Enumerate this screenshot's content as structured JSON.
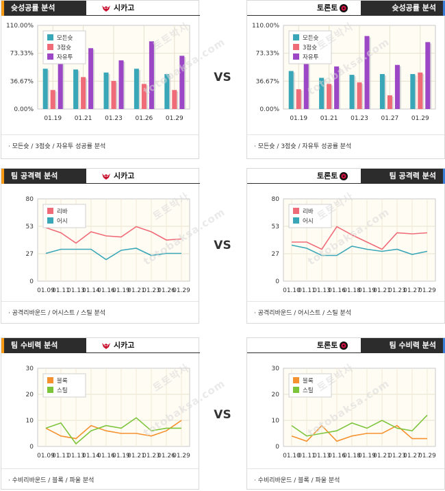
{
  "vs_label": "VS",
  "watermark": [
    "토토박사",
    "totobaksa.com"
  ],
  "teams": {
    "left": "시카고",
    "right": "토론토"
  },
  "colors": {
    "accent_left": "#f59a12",
    "accent_right": "#3a7fd9",
    "header_bg": "#2c2c2c",
    "plot_bg": "#fffcf3"
  },
  "sections": [
    {
      "title": "슛성공률 분석",
      "footer": "모든슛 / 3점슛 / 자유투 성공률 분석",
      "charts": [
        {
          "type": "bar",
          "categories": [
            "01.19",
            "01.21",
            "01.23",
            "01.26",
            "01.29"
          ],
          "yticks": [
            "110.00%",
            "73.33%",
            "36.67%",
            "0.00%"
          ],
          "ylim": [
            0,
            110
          ],
          "legend_position": "top-left",
          "series": [
            {
              "name": "모든슛",
              "color": "#3aa7b8",
              "values": [
                53,
                52,
                48,
                53,
                46
              ]
            },
            {
              "name": "3점슛",
              "color": "#f06b78",
              "values": [
                25,
                42,
                37,
                33,
                25
              ]
            },
            {
              "name": "자유투",
              "color": "#9b47c6",
              "values": [
                85,
                80,
                64,
                89,
                70
              ]
            }
          ]
        },
        {
          "type": "bar",
          "categories": [
            "01.19",
            "01.21",
            "01.23",
            "01.27",
            "01.29"
          ],
          "yticks": [
            "110.00%",
            "73.33%",
            "36.67%",
            "0.00%"
          ],
          "ylim": [
            0,
            110
          ],
          "legend_position": "top-left",
          "series": [
            {
              "name": "모든슛",
              "color": "#3aa7b8",
              "values": [
                50,
                41,
                45,
                46,
                46
              ]
            },
            {
              "name": "3점슛",
              "color": "#f06b78",
              "values": [
                26,
                33,
                35,
                18,
                48
              ]
            },
            {
              "name": "자유투",
              "color": "#9b47c6",
              "values": [
                86,
                56,
                96,
                58,
                88
              ]
            }
          ]
        }
      ]
    },
    {
      "title": "팀 공격력 분석",
      "footer": "공격리바운드 / 어시스트 / 스틸 분석",
      "charts": [
        {
          "type": "line",
          "categories": [
            "01.09",
            "01.11",
            "01.13",
            "01.14",
            "01.16",
            "01.19",
            "01.21",
            "01.23",
            "01.26",
            "01.29"
          ],
          "yticks": [
            "80",
            "53",
            "27",
            "0"
          ],
          "ylim": [
            0,
            80
          ],
          "legend_position": "top-left",
          "series": [
            {
              "name": "리바",
              "color": "#f06b78",
              "values": [
                52,
                47,
                37,
                48,
                44,
                43,
                53,
                48,
                40,
                41
              ]
            },
            {
              "name": "어시",
              "color": "#3aa7b8",
              "values": [
                27,
                31,
                31,
                31,
                21,
                30,
                32,
                25,
                27,
                27
              ]
            }
          ]
        },
        {
          "type": "line",
          "categories": [
            "01.10",
            "01.11",
            "01.13",
            "01.16",
            "01.18",
            "01.19",
            "01.21",
            "01.23",
            "01.27",
            "01.29"
          ],
          "yticks": [
            "80",
            "53",
            "27",
            "0"
          ],
          "ylim": [
            0,
            80
          ],
          "legend_position": "top-left",
          "series": [
            {
              "name": "리바",
              "color": "#f06b78",
              "values": [
                38,
                38,
                31,
                53,
                45,
                38,
                31,
                47,
                46,
                47
              ]
            },
            {
              "name": "어시",
              "color": "#3aa7b8",
              "values": [
                35,
                32,
                25,
                25,
                34,
                31,
                29,
                31,
                26,
                29
              ]
            }
          ]
        }
      ]
    },
    {
      "title": "팀 수비력 분석",
      "footer": "수비리바운드 / 블록 / 파울 분석",
      "charts": [
        {
          "type": "line",
          "categories": [
            "01.09",
            "01.11",
            "01.13",
            "01.14",
            "01.16",
            "01.19",
            "01.21",
            "01.23",
            "01.26",
            "01.29"
          ],
          "yticks": [
            "30",
            "20",
            "10",
            "0"
          ],
          "ylim": [
            0,
            30
          ],
          "legend_position": "top-left",
          "series": [
            {
              "name": "블록",
              "color": "#f5912e",
              "values": [
                7,
                4,
                3,
                8,
                6,
                5,
                5,
                4,
                6,
                10
              ]
            },
            {
              "name": "스틸",
              "color": "#7cc43a",
              "values": [
                7,
                9,
                1,
                6,
                8,
                7,
                11,
                6,
                7,
                7
              ]
            }
          ]
        },
        {
          "type": "line",
          "categories": [
            "01.10",
            "01.11",
            "01.13",
            "01.16",
            "01.18",
            "01.19",
            "01.21",
            "01.23",
            "01.27",
            "01.29"
          ],
          "yticks": [
            "30",
            "20",
            "10",
            "0"
          ],
          "ylim": [
            0,
            30
          ],
          "legend_position": "top-left",
          "series": [
            {
              "name": "블록",
              "color": "#f5912e",
              "values": [
                4,
                2,
                8,
                2,
                4,
                5,
                5,
                8,
                3,
                3
              ]
            },
            {
              "name": "스틸",
              "color": "#7cc43a",
              "values": [
                8,
                4,
                5,
                6,
                9,
                7,
                10,
                7,
                6,
                12
              ]
            }
          ]
        }
      ]
    }
  ]
}
